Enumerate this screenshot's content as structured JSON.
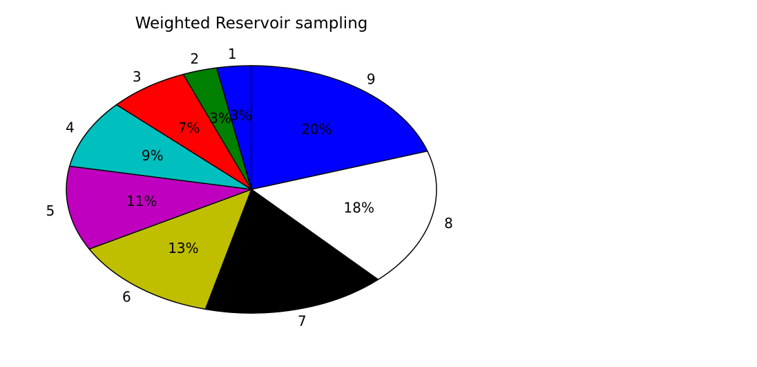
{
  "chart_data": {
    "type": "pie",
    "title": "Weighted Reservoir sampling",
    "start_angle_deg": 90,
    "direction": "clockwise",
    "slices": [
      {
        "label": "9",
        "value": 20,
        "pct_label": "20%",
        "color": "#0000ff"
      },
      {
        "label": "8",
        "value": 18,
        "pct_label": "18%",
        "color": "#ffffff"
      },
      {
        "label": "7",
        "value": 16,
        "pct_label": "",
        "color": "#000000"
      },
      {
        "label": "6",
        "value": 13,
        "pct_label": "13%",
        "color": "#bfbf00"
      },
      {
        "label": "5",
        "value": 11,
        "pct_label": "11%",
        "color": "#bf00bf"
      },
      {
        "label": "4",
        "value": 9,
        "pct_label": "9%",
        "color": "#00bfbf"
      },
      {
        "label": "3",
        "value": 7,
        "pct_label": "7%",
        "color": "#ff0000"
      },
      {
        "label": "2",
        "value": 3,
        "pct_label": "3%",
        "color": "#008000"
      },
      {
        "label": "1",
        "value": 3,
        "pct_label": "3%",
        "color": "#0000ff"
      }
    ]
  }
}
